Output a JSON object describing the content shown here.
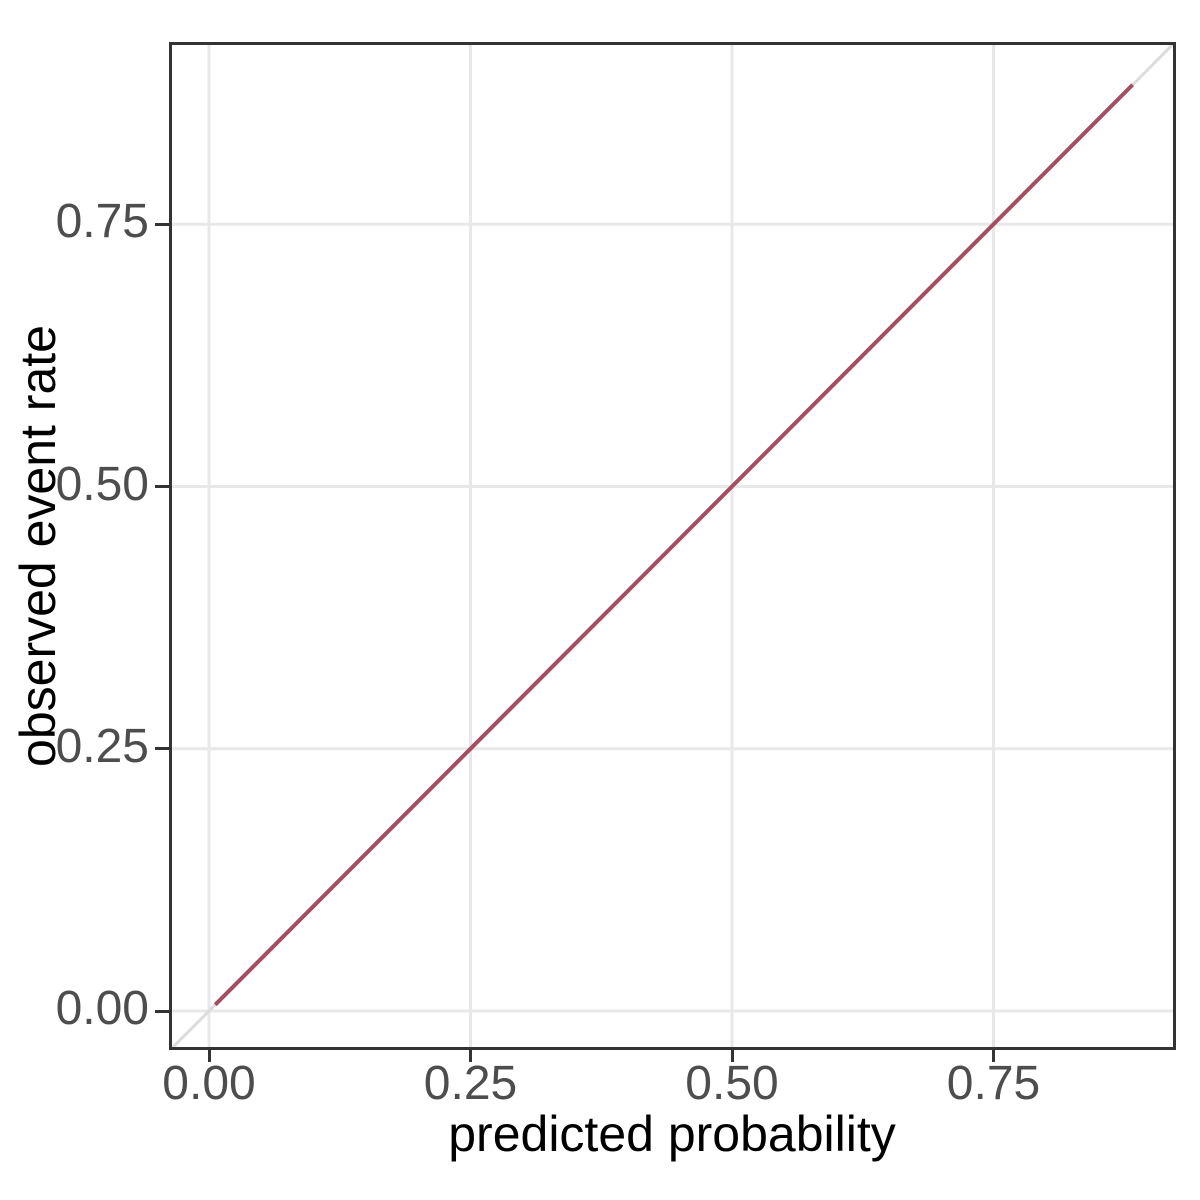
{
  "figure": {
    "background": "#FFFFFF",
    "panel": {
      "background": "#FFFFFF",
      "border_color": "#333333",
      "grid_color": "#E8E8E8"
    },
    "axis": {
      "tick_color": "#333333",
      "tick_label_color": "#4D4D4D",
      "title_color": "#000000"
    }
  },
  "chart_data": {
    "type": "line",
    "title": "",
    "xlabel": "predicted probability",
    "ylabel": "observed event rate",
    "xlim": [
      -0.038,
      0.925
    ],
    "ylim": [
      -0.037,
      0.924
    ],
    "grid": true,
    "legend_position": "none",
    "x_ticks": [
      {
        "value": 0.0,
        "label": "0.00"
      },
      {
        "value": 0.25,
        "label": "0.25"
      },
      {
        "value": 0.5,
        "label": "0.50"
      },
      {
        "value": 0.75,
        "label": "0.75"
      }
    ],
    "y_ticks": [
      {
        "value": 0.0,
        "label": "0.00"
      },
      {
        "value": 0.25,
        "label": "0.25"
      },
      {
        "value": 0.5,
        "label": "0.50"
      },
      {
        "value": 0.75,
        "label": "0.75"
      }
    ],
    "series": [
      {
        "name": "ideal-reference-line",
        "description": "identity line y = x",
        "color": "#DCDCDC",
        "width": 3,
        "points": [
          [
            -0.05,
            -0.05
          ],
          [
            0.95,
            0.95
          ]
        ]
      },
      {
        "name": "calibration-line",
        "description": "observed vs predicted, perfectly calibrated",
        "color": "#A44E62",
        "width": 4,
        "points": [
          [
            0.006,
            0.006
          ],
          [
            0.883,
            0.883
          ]
        ]
      }
    ]
  }
}
